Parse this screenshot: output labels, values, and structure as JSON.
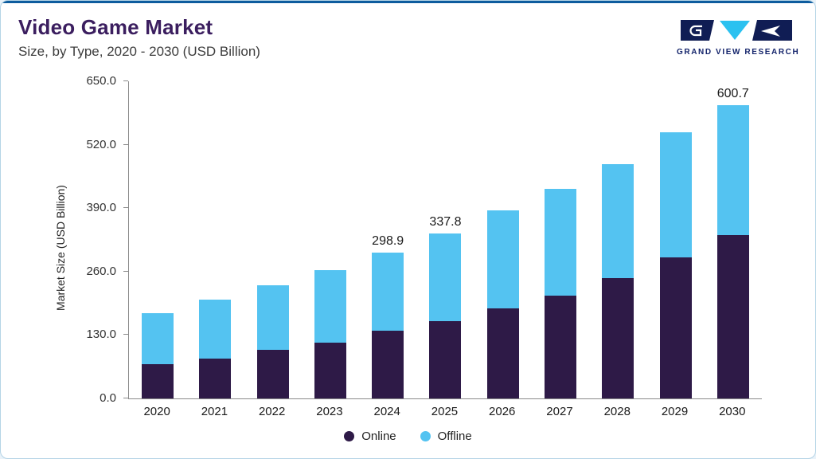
{
  "header": {
    "title": "Video Game Market",
    "subtitle": "Size, by Type, 2020 - 2030 (USD Billion)"
  },
  "logo": {
    "text": "GRAND VIEW RESEARCH"
  },
  "chart_data": {
    "type": "bar",
    "stacked": true,
    "title": "Video Game Market Size, by Type, 2020 - 2030 (USD Billion)",
    "ylabel": "Market Size (USD Billion)",
    "ylim": [
      0,
      650
    ],
    "yticks": [
      0,
      130,
      260,
      390,
      520,
      650
    ],
    "ytick_labels": [
      "0.0",
      "130.0",
      "260.0",
      "390.0",
      "520.0",
      "650.0"
    ],
    "categories": [
      "2020",
      "2021",
      "2022",
      "2023",
      "2024",
      "2025",
      "2026",
      "2027",
      "2028",
      "2029",
      "2030"
    ],
    "series": [
      {
        "name": "Online",
        "color": "#2e1a47",
        "values": [
          70,
          81,
          99,
          115,
          139,
          158,
          184,
          211,
          246,
          289,
          335
        ]
      },
      {
        "name": "Offline",
        "color": "#54c3f1",
        "values": [
          105,
          121,
          133,
          148,
          159.9,
          179.8,
          201,
          219,
          234,
          256,
          265.7
        ]
      }
    ],
    "total_labels": [
      null,
      null,
      null,
      null,
      "298.9",
      "337.8",
      null,
      null,
      null,
      null,
      "600.7"
    ],
    "grid": false,
    "legend_position": "bottom"
  }
}
